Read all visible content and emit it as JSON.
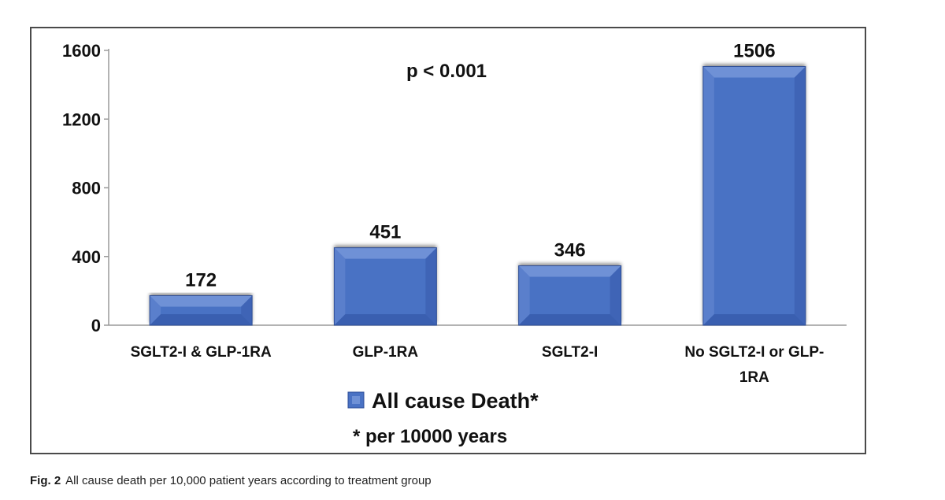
{
  "chart_data": {
    "type": "bar",
    "title": "",
    "categories": [
      [
        "SGLT2-I & GLP-1RA"
      ],
      [
        "GLP-1RA"
      ],
      [
        "SGLT2-I"
      ],
      [
        "No SGLT2-I or GLP-",
        "1RA"
      ]
    ],
    "series": [
      {
        "name": "All cause Death*",
        "values": [
          172,
          451,
          346,
          1506
        ]
      }
    ],
    "data_labels": [
      "172",
      "451",
      "346",
      "1506"
    ],
    "ylim": [
      0,
      1600
    ],
    "yticks": [
      0,
      400,
      800,
      1200,
      1600
    ],
    "ytick_labels": [
      "0",
      "400",
      "800",
      "1200",
      "1600"
    ],
    "xlabel": "",
    "ylabel": "",
    "annotation": "p < 0.001",
    "footnote": "* per 10000 years",
    "bar_color": "#4a72c4",
    "legend_position": "bottom-center"
  },
  "caption": {
    "label": "Fig. 2",
    "text": "All cause death per 10,000 patient years according to treatment group"
  }
}
